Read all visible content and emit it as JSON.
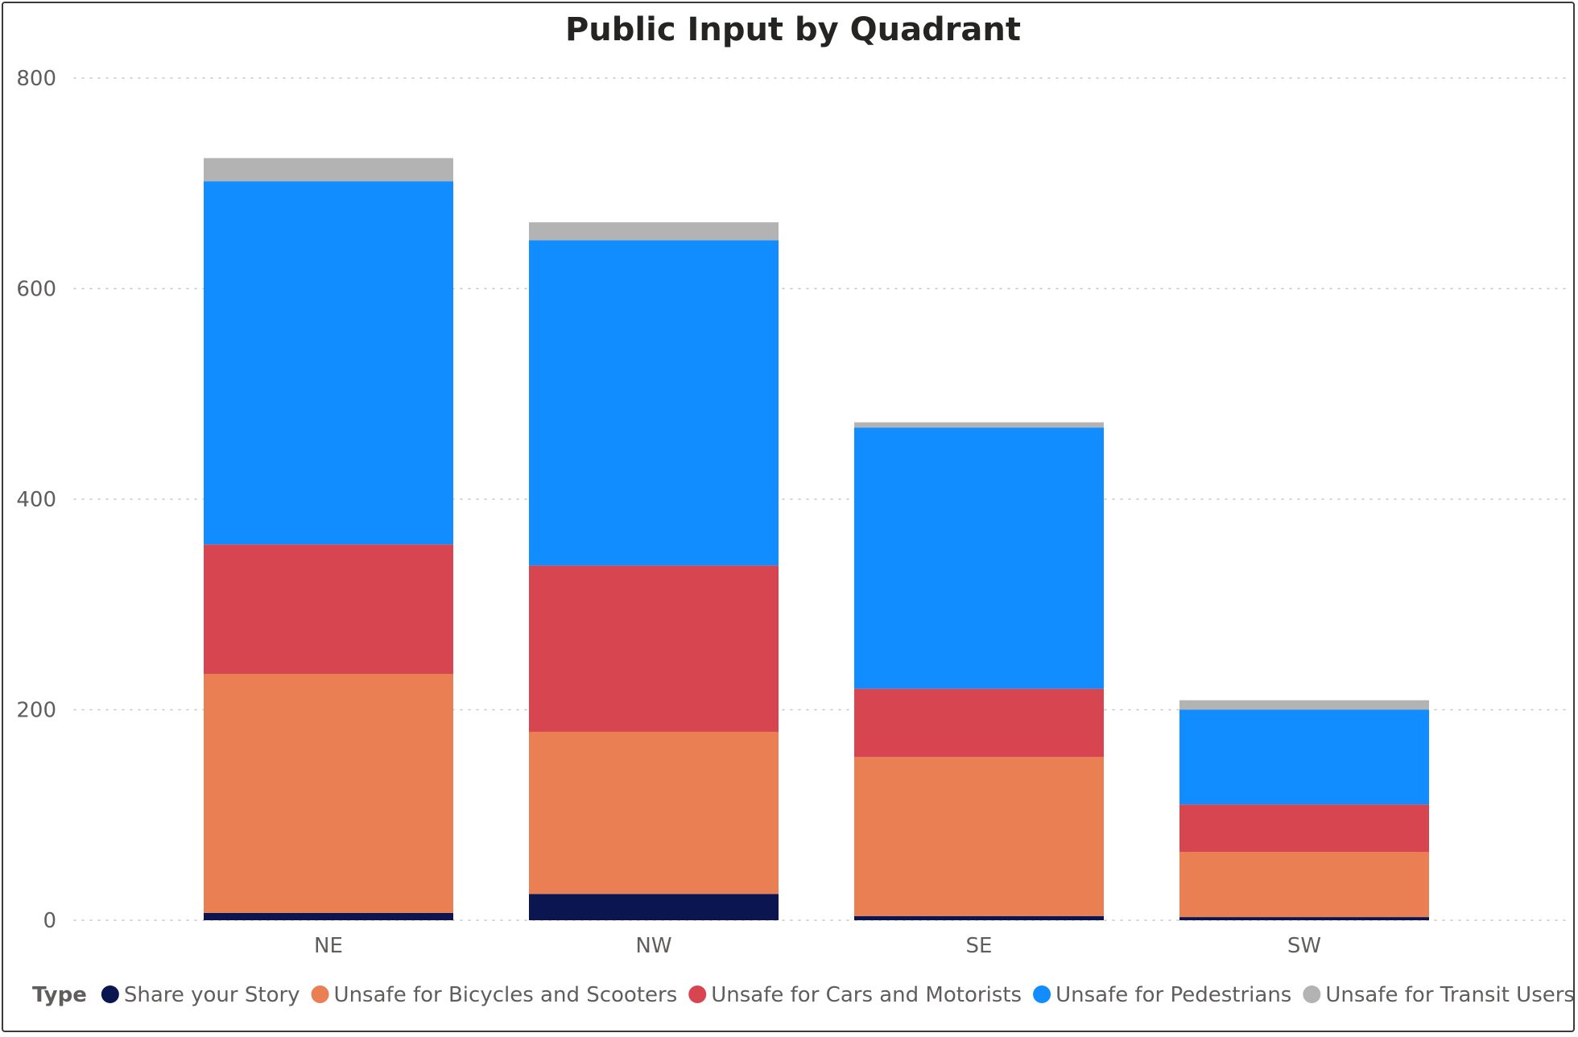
{
  "chart_data": {
    "type": "bar",
    "stacked": true,
    "title": "Public Input by Quadrant",
    "xlabel": "",
    "ylabel": "",
    "ylim": [
      0,
      800
    ],
    "yticks": [
      0,
      200,
      400,
      600,
      800
    ],
    "grid": true,
    "legend_position": "bottom",
    "legend_title": "Type",
    "categories": [
      "NE",
      "NW",
      "SE",
      "SW"
    ],
    "series": [
      {
        "name": "Share your Story",
        "color": "#0b1550",
        "values": [
          7,
          25,
          4,
          3
        ]
      },
      {
        "name": "Unsafe for Bicycles and Scooters",
        "color": "#e97f53",
        "values": [
          227,
          154,
          151,
          62
        ]
      },
      {
        "name": "Unsafe for Cars and Motorists",
        "color": "#d64550",
        "values": [
          123,
          158,
          65,
          45
        ]
      },
      {
        "name": "Unsafe for Pedestrians",
        "color": "#118dff",
        "values": [
          345,
          309,
          248,
          90
        ]
      },
      {
        "name": "Unsafe for Transit Users",
        "color": "#b3b3b3",
        "values": [
          22,
          17,
          5,
          9
        ]
      }
    ]
  }
}
